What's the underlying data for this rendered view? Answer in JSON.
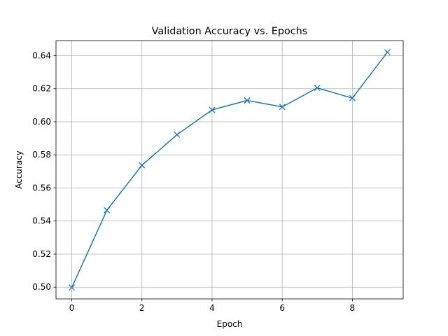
{
  "chart_data": {
    "type": "line",
    "title": "Validation Accuracy vs. Epochs",
    "xlabel": "Epoch",
    "ylabel": "Accuracy",
    "xlim": [
      -0.45,
      9.45
    ],
    "ylim": [
      0.4929,
      0.6491
    ],
    "x_ticks": [
      0,
      2,
      4,
      6,
      8
    ],
    "x_tick_labels": [
      "0",
      "2",
      "4",
      "6",
      "8"
    ],
    "y_ticks": [
      0.5,
      0.52,
      0.54,
      0.56,
      0.58,
      0.6,
      0.62,
      0.64
    ],
    "y_tick_labels": [
      "0.50",
      "0.52",
      "0.54",
      "0.56",
      "0.58",
      "0.60",
      "0.62",
      "0.64"
    ],
    "grid": true,
    "marker": "x",
    "colors": {
      "series": "#1f77b4",
      "grid": "#b0b0b0"
    },
    "series": [
      {
        "x": [
          0,
          1,
          2,
          3,
          4,
          5,
          6,
          7,
          8,
          9
        ],
        "values": [
          0.4998,
          0.5465,
          0.5737,
          0.5922,
          0.6072,
          0.6129,
          0.609,
          0.6205,
          0.6143,
          0.6421
        ]
      }
    ]
  }
}
